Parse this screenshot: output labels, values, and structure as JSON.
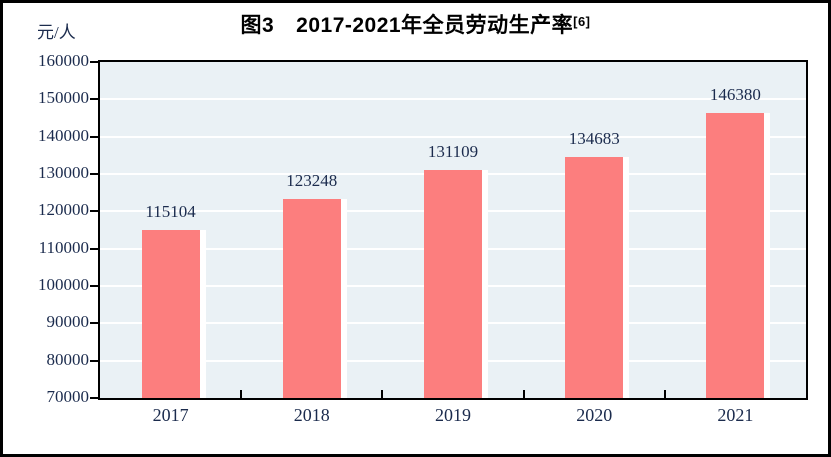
{
  "title": {
    "prefix": "图3",
    "main": "2017-2021年全员劳动生产率",
    "superscript": "[6]"
  },
  "unit_label": "元/人",
  "colors": {
    "bar": "#FC7E7E",
    "bar_shadow": "#FFFFFF",
    "plot_background": "#EAF1F5",
    "gridline": "#FFFFFF",
    "axis": "#000000",
    "label_text": "#1B2B4D",
    "title_text": "#000000"
  },
  "chart_data": {
    "type": "bar",
    "title": "图3 2017-2021年全员劳动生产率[6]",
    "categories": [
      "2017",
      "2018",
      "2019",
      "2020",
      "2021"
    ],
    "values": [
      115104,
      123248,
      131109,
      134683,
      146380
    ],
    "data_labels": [
      "115104",
      "123248",
      "131109",
      "134683",
      "146380"
    ],
    "xlabel": "",
    "ylabel": "元/人",
    "ylim": [
      70000,
      160000
    ],
    "ytick_step": 10000,
    "y_ticks": [
      160000,
      150000,
      140000,
      130000,
      120000,
      110000,
      100000,
      90000,
      80000,
      70000
    ],
    "y_tick_labels": [
      "160000",
      "150000",
      "140000",
      "130000",
      "120000",
      "110000",
      "100000",
      "90000",
      "80000",
      "70000"
    ],
    "grid": true,
    "gridline_color": "white",
    "legend": false
  }
}
